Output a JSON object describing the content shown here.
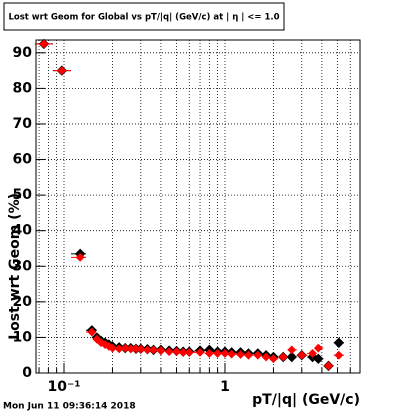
{
  "chart_data": {
    "type": "scatter",
    "title": "Lost wrt Geom for Global vs pT/|q| (GeV/c) at | η | <= 1.0",
    "x_label": "pT/|q| (GeV/c)",
    "y_label": "Lost wrt Geom (%)",
    "timestamp": "Mon Jun 11 09:36:14 2018",
    "x": [
      0.075,
      0.097,
      0.126,
      0.149,
      0.16,
      0.17,
      0.18,
      0.19,
      0.2,
      0.22,
      0.24,
      0.26,
      0.28,
      0.3,
      0.33,
      0.36,
      0.4,
      0.45,
      0.5,
      0.55,
      0.6,
      0.7,
      0.8,
      0.9,
      1.0,
      1.1,
      1.25,
      1.4,
      1.6,
      1.8,
      2.0,
      2.3,
      2.6,
      3.0,
      3.5,
      3.8,
      4.4,
      5.1
    ],
    "series": [
      {
        "color": "#000000",
        "values": [
          92.5,
          85,
          33.5,
          12,
          10,
          9,
          8.5,
          8,
          7.5,
          7.2,
          7,
          7,
          6.8,
          6.8,
          6.7,
          6.5,
          6.5,
          6.3,
          6.2,
          6,
          6,
          6.3,
          6.5,
          6,
          6,
          5.8,
          5.8,
          5.5,
          5.5,
          5,
          4.5,
          4.5,
          4.5,
          5,
          4.5,
          4,
          2,
          8.5
        ]
      },
      {
        "color": "#ff0000",
        "values": [
          92.5,
          85,
          32.5,
          11.5,
          9.5,
          8.5,
          8,
          7.5,
          7,
          6.8,
          7,
          6.8,
          6.8,
          6.7,
          6.5,
          6.5,
          6.3,
          6,
          6,
          5.8,
          5.8,
          5.8,
          5.5,
          5.5,
          5.5,
          5.3,
          5.2,
          5,
          5,
          4.5,
          4,
          4.5,
          6.5,
          5,
          5.5,
          7,
          2,
          5
        ]
      }
    ],
    "xlog": true,
    "xlim": [
      0.067,
      6.9
    ],
    "xticks": [
      {
        "value": 0.1,
        "label": "10⁻¹"
      },
      1
    ],
    "xgrid_minor": [
      0.07,
      0.08,
      0.09,
      0.2,
      0.3,
      0.4,
      0.5,
      0.6,
      0.7,
      0.8,
      0.9,
      2,
      3,
      4,
      5,
      6
    ],
    "ylim": [
      0,
      93.6
    ],
    "yticks": [
      0,
      10,
      20,
      30,
      40,
      50,
      60,
      70,
      80,
      90
    ],
    "grid": true
  }
}
